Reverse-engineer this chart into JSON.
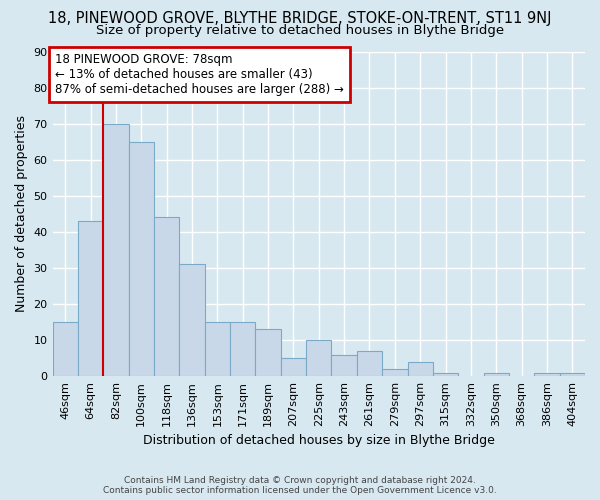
{
  "title": "18, PINEWOOD GROVE, BLYTHE BRIDGE, STOKE-ON-TRENT, ST11 9NJ",
  "subtitle": "Size of property relative to detached houses in Blythe Bridge",
  "xlabel": "Distribution of detached houses by size in Blythe Bridge",
  "ylabel": "Number of detached properties",
  "categories": [
    "46sqm",
    "64sqm",
    "82sqm",
    "100sqm",
    "118sqm",
    "136sqm",
    "153sqm",
    "171sqm",
    "189sqm",
    "207sqm",
    "225sqm",
    "243sqm",
    "261sqm",
    "279sqm",
    "297sqm",
    "315sqm",
    "332sqm",
    "350sqm",
    "368sqm",
    "386sqm",
    "404sqm"
  ],
  "values": [
    15,
    43,
    70,
    65,
    44,
    31,
    15,
    15,
    13,
    5,
    10,
    6,
    7,
    2,
    4,
    1,
    0,
    1,
    0,
    1,
    1
  ],
  "bar_color": "#c8d8e8",
  "bar_edge_color": "#7aaac8",
  "ylim": [
    0,
    90
  ],
  "yticks": [
    0,
    10,
    20,
    30,
    40,
    50,
    60,
    70,
    80,
    90
  ],
  "redline_x": 1.5,
  "annotation_line1": "18 PINEWOOD GROVE: 78sqm",
  "annotation_line2": "← 13% of detached houses are smaller (43)",
  "annotation_line3": "87% of semi-detached houses are larger (288) →",
  "annotation_box_edgecolor": "#cc0000",
  "footer1": "Contains HM Land Registry data © Crown copyright and database right 2024.",
  "footer2": "Contains public sector information licensed under the Open Government Licence v3.0.",
  "background_color": "#d8e8f0",
  "plot_bg_color": "#d8e8f0",
  "grid_color": "#ffffff",
  "title_fontsize": 10.5,
  "subtitle_fontsize": 9.5,
  "ylabel_fontsize": 9,
  "xlabel_fontsize": 9,
  "tick_fontsize": 8,
  "annot_fontsize": 8.5,
  "footer_fontsize": 6.5
}
